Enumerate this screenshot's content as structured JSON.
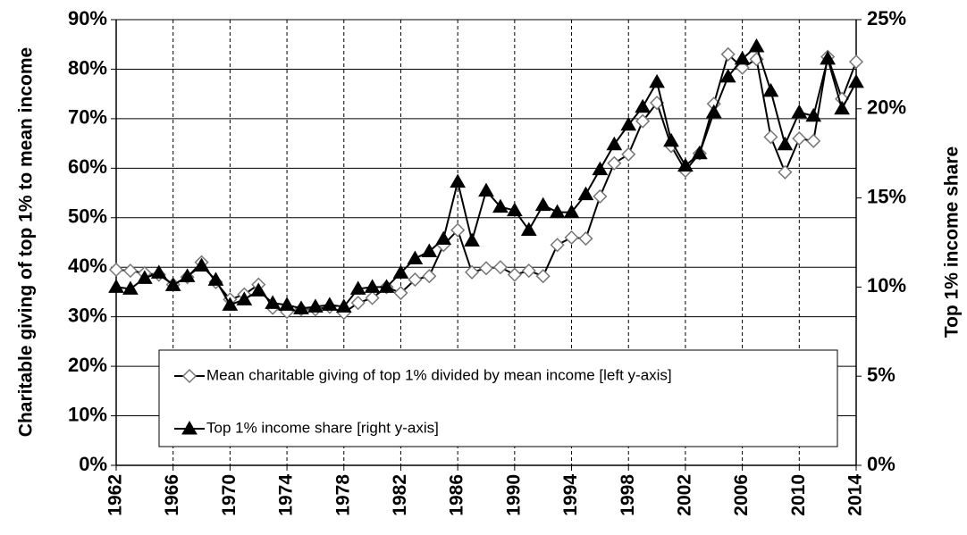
{
  "chart_data": {
    "type": "line",
    "y_label": "Charitable giving of top 1% to mean income",
    "y2_label": "Top 1% income share",
    "x": [
      1962,
      1963,
      1964,
      1965,
      1966,
      1967,
      1968,
      1969,
      1970,
      1971,
      1972,
      1973,
      1974,
      1975,
      1976,
      1977,
      1978,
      1979,
      1980,
      1981,
      1982,
      1983,
      1984,
      1985,
      1986,
      1987,
      1988,
      1989,
      1990,
      1991,
      1992,
      1993,
      1994,
      1995,
      1996,
      1997,
      1998,
      1999,
      2000,
      2001,
      2002,
      2003,
      2004,
      2005,
      2006,
      2007,
      2008,
      2009,
      2010,
      2011,
      2012,
      2013,
      2014
    ],
    "xlim": [
      1962,
      2014
    ],
    "xticks": [
      1962,
      1966,
      1970,
      1974,
      1978,
      1982,
      1986,
      1990,
      1994,
      1998,
      2002,
      2006,
      2010,
      2014
    ],
    "ylim": [
      0,
      90
    ],
    "yticks": [
      {
        "value": 0,
        "label": "0%"
      },
      {
        "value": 10,
        "label": "10%"
      },
      {
        "value": 20,
        "label": "20%"
      },
      {
        "value": 30,
        "label": "30%"
      },
      {
        "value": 40,
        "label": "40%"
      },
      {
        "value": 50,
        "label": "50%"
      },
      {
        "value": 60,
        "label": "60%"
      },
      {
        "value": 70,
        "label": "70%"
      },
      {
        "value": 80,
        "label": "80%"
      },
      {
        "value": 90,
        "label": "90%"
      }
    ],
    "y2lim": [
      0,
      25
    ],
    "y2ticks": [
      {
        "value": 0,
        "label": "0%"
      },
      {
        "value": 5,
        "label": "5%"
      },
      {
        "value": 10,
        "label": "10%"
      },
      {
        "value": 15,
        "label": "15%"
      },
      {
        "value": 20,
        "label": "20%"
      },
      {
        "value": 25,
        "label": "25%"
      }
    ],
    "grid": true,
    "series": [
      {
        "name": "Mean charitable giving of top 1% divided by mean income [left y-axis]",
        "color": "#000000",
        "marker": "diamond",
        "values": [
          39.5,
          39.3,
          38.8,
          38.5,
          36.5,
          38,
          41,
          37,
          33.5,
          34.5,
          36.5,
          31.8,
          31,
          31.5,
          31.5,
          32,
          30.8,
          32.8,
          33.8,
          36,
          34.8,
          37.5,
          38.2,
          44.5,
          47.5,
          39,
          39.8,
          40,
          38.5,
          39.3,
          38.2,
          44.5,
          46,
          45.8,
          54.3,
          61,
          62.8,
          69.5,
          73.2,
          64.5,
          59.5,
          63,
          73,
          83,
          80.3,
          82,
          66.3,
          59.2,
          66,
          65.5,
          82.5,
          74,
          81.5
        ]
      },
      {
        "name": "Top 1% income share [right y-axis]",
        "color": "#000000",
        "marker": "triangle",
        "axis": "y2",
        "values": [
          10.0,
          9.9,
          10.5,
          10.8,
          10.1,
          10.6,
          11.2,
          10.4,
          9.0,
          9.3,
          9.8,
          9.1,
          9.0,
          8.8,
          8.9,
          9.0,
          8.9,
          9.9,
          10.0,
          10.0,
          10.8,
          11.6,
          12.0,
          12.7,
          15.9,
          12.6,
          15.4,
          14.5,
          14.3,
          13.2,
          14.6,
          14.2,
          14.2,
          15.2,
          16.6,
          18.0,
          19.1,
          20.1,
          21.5,
          18.2,
          16.8,
          17.5,
          19.8,
          21.8,
          22.8,
          23.5,
          21.0,
          18.0,
          19.8,
          19.6,
          22.8,
          20.0,
          21.5
        ]
      }
    ]
  }
}
